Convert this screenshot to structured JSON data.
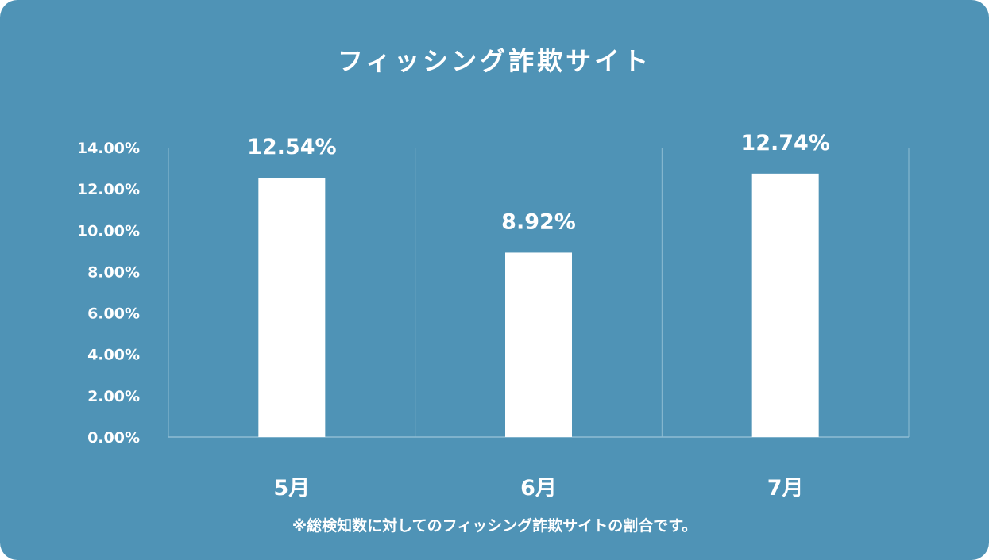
{
  "chart_data": {
    "type": "bar",
    "title": "フィッシング詐欺サイト",
    "categories": [
      "5月",
      "6月",
      "7月"
    ],
    "values": [
      12.54,
      8.92,
      12.74
    ],
    "value_labels": [
      "12.54%",
      "8.92%",
      "12.74%"
    ],
    "yticks": [
      "0.00%",
      "2.00%",
      "4.00%",
      "6.00%",
      "8.00%",
      "10.00%",
      "12.00%",
      "14.00%"
    ],
    "ylim": [
      0,
      14
    ],
    "xlabel": "",
    "ylabel": "",
    "grid": "vertical separators",
    "colors": {
      "background": "#4f93b6",
      "bar": "#ffffff",
      "text": "#ffffff",
      "grid": "#8fbdd3"
    }
  },
  "footnote": "※総検知数に対してのフィッシング詐欺サイトの割合です。"
}
